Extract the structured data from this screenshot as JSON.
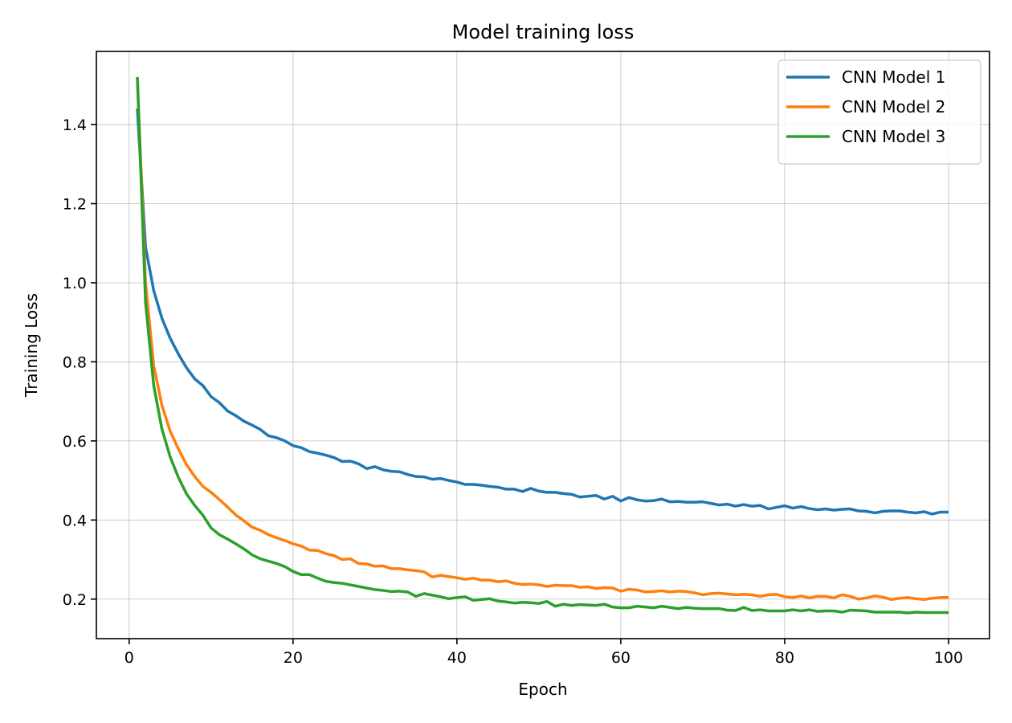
{
  "chart_data": {
    "type": "line",
    "title": "Model training loss",
    "xlabel": "Epoch",
    "ylabel": "Training Loss",
    "xlim": [
      -4,
      105
    ],
    "ylim": [
      0.1,
      1.585
    ],
    "xticks": [
      0,
      20,
      40,
      60,
      80,
      100
    ],
    "yticks": [
      0.2,
      0.4,
      0.6,
      0.8,
      1.0,
      1.2,
      1.4
    ],
    "xtick_labels": [
      "0",
      "20",
      "40",
      "60",
      "80",
      "100"
    ],
    "ytick_labels": [
      "0.2",
      "0.4",
      "0.6",
      "0.8",
      "1.0",
      "1.2",
      "1.4"
    ],
    "grid": true,
    "legend_position": "top-right",
    "series": [
      {
        "name": "CNN Model 1",
        "color": "#1f77b4",
        "x": [
          1,
          2,
          3,
          4,
          5,
          6,
          7,
          8,
          9,
          10,
          11,
          12,
          13,
          14,
          15,
          16,
          17,
          18,
          19,
          20,
          21,
          22,
          23,
          24,
          25,
          26,
          27,
          28,
          29,
          30,
          31,
          32,
          33,
          34,
          35,
          36,
          37,
          38,
          39,
          40,
          41,
          42,
          43,
          44,
          45,
          46,
          47,
          48,
          49,
          50,
          51,
          52,
          53,
          54,
          55,
          56,
          57,
          58,
          59,
          60,
          61,
          62,
          63,
          64,
          65,
          66,
          67,
          68,
          69,
          70,
          71,
          72,
          73,
          74,
          75,
          76,
          77,
          78,
          79,
          80,
          81,
          82,
          83,
          84,
          85,
          86,
          87,
          88,
          89,
          90,
          91,
          92,
          93,
          94,
          95,
          96,
          97,
          98,
          99,
          100
        ],
        "values": [
          1.44,
          1.09,
          0.98,
          0.91,
          0.86,
          0.82,
          0.785,
          0.757,
          0.74,
          0.712,
          0.697,
          0.676,
          0.664,
          0.65,
          0.64,
          0.629,
          0.613,
          0.608,
          0.6,
          0.588,
          0.583,
          0.573,
          0.569,
          0.564,
          0.558,
          0.548,
          0.549,
          0.542,
          0.53,
          0.535,
          0.527,
          0.523,
          0.522,
          0.515,
          0.51,
          0.509,
          0.503,
          0.505,
          0.5,
          0.496,
          0.49,
          0.49,
          0.488,
          0.485,
          0.483,
          0.478,
          0.478,
          0.472,
          0.48,
          0.473,
          0.47,
          0.47,
          0.467,
          0.465,
          0.458,
          0.46,
          0.462,
          0.453,
          0.46,
          0.448,
          0.457,
          0.451,
          0.448,
          0.449,
          0.453,
          0.446,
          0.447,
          0.445,
          0.445,
          0.446,
          0.442,
          0.438,
          0.44,
          0.435,
          0.439,
          0.435,
          0.437,
          0.428,
          0.432,
          0.436,
          0.43,
          0.434,
          0.429,
          0.426,
          0.428,
          0.425,
          0.427,
          0.428,
          0.423,
          0.422,
          0.418,
          0.422,
          0.423,
          0.423,
          0.42,
          0.418,
          0.421,
          0.415,
          0.42,
          0.42
        ]
      },
      {
        "name": "CNN Model 2",
        "color": "#ff7f0e",
        "x": [
          1,
          2,
          3,
          4,
          5,
          6,
          7,
          8,
          9,
          10,
          11,
          12,
          13,
          14,
          15,
          16,
          17,
          18,
          19,
          20,
          21,
          22,
          23,
          24,
          25,
          26,
          27,
          28,
          29,
          30,
          31,
          32,
          33,
          34,
          35,
          36,
          37,
          38,
          39,
          40,
          41,
          42,
          43,
          44,
          45,
          46,
          47,
          48,
          49,
          50,
          51,
          52,
          53,
          54,
          55,
          56,
          57,
          58,
          59,
          60,
          61,
          62,
          63,
          64,
          65,
          66,
          67,
          68,
          69,
          70,
          71,
          72,
          73,
          74,
          75,
          76,
          77,
          78,
          79,
          80,
          81,
          82,
          83,
          84,
          85,
          86,
          87,
          88,
          89,
          90,
          91,
          92,
          93,
          94,
          95,
          96,
          97,
          98,
          99,
          100
        ],
        "values": [
          1.52,
          1.0,
          0.79,
          0.69,
          0.625,
          0.58,
          0.54,
          0.51,
          0.485,
          0.47,
          0.452,
          0.433,
          0.413,
          0.398,
          0.382,
          0.374,
          0.363,
          0.355,
          0.348,
          0.34,
          0.334,
          0.324,
          0.323,
          0.315,
          0.31,
          0.3,
          0.302,
          0.29,
          0.289,
          0.283,
          0.284,
          0.277,
          0.277,
          0.274,
          0.272,
          0.269,
          0.256,
          0.26,
          0.257,
          0.254,
          0.25,
          0.253,
          0.248,
          0.248,
          0.244,
          0.246,
          0.24,
          0.237,
          0.238,
          0.236,
          0.232,
          0.235,
          0.234,
          0.234,
          0.23,
          0.231,
          0.227,
          0.229,
          0.228,
          0.22,
          0.225,
          0.223,
          0.218,
          0.219,
          0.221,
          0.218,
          0.22,
          0.219,
          0.216,
          0.211,
          0.214,
          0.215,
          0.213,
          0.211,
          0.212,
          0.211,
          0.207,
          0.211,
          0.212,
          0.206,
          0.204,
          0.208,
          0.203,
          0.207,
          0.207,
          0.203,
          0.211,
          0.207,
          0.2,
          0.203,
          0.208,
          0.205,
          0.199,
          0.202,
          0.204,
          0.201,
          0.199,
          0.202,
          0.204,
          0.204
        ]
      },
      {
        "name": "CNN Model 3",
        "color": "#2ca02c",
        "x": [
          1,
          2,
          3,
          4,
          5,
          6,
          7,
          8,
          9,
          10,
          11,
          12,
          13,
          14,
          15,
          16,
          17,
          18,
          19,
          20,
          21,
          22,
          23,
          24,
          25,
          26,
          27,
          28,
          29,
          30,
          31,
          32,
          33,
          34,
          35,
          36,
          37,
          38,
          39,
          40,
          41,
          42,
          43,
          44,
          45,
          46,
          47,
          48,
          49,
          50,
          51,
          52,
          53,
          54,
          55,
          56,
          57,
          58,
          59,
          60,
          61,
          62,
          63,
          64,
          65,
          66,
          67,
          68,
          69,
          70,
          71,
          72,
          73,
          74,
          75,
          76,
          77,
          78,
          79,
          80,
          81,
          82,
          83,
          84,
          85,
          86,
          87,
          88,
          89,
          90,
          91,
          92,
          93,
          94,
          95,
          96,
          97,
          98,
          99,
          100
        ],
        "values": [
          1.52,
          0.95,
          0.74,
          0.63,
          0.56,
          0.508,
          0.466,
          0.437,
          0.412,
          0.38,
          0.363,
          0.352,
          0.34,
          0.327,
          0.312,
          0.302,
          0.296,
          0.29,
          0.282,
          0.27,
          0.262,
          0.262,
          0.253,
          0.245,
          0.242,
          0.24,
          0.236,
          0.232,
          0.228,
          0.224,
          0.222,
          0.219,
          0.22,
          0.218,
          0.207,
          0.214,
          0.21,
          0.206,
          0.201,
          0.204,
          0.206,
          0.197,
          0.199,
          0.201,
          0.195,
          0.193,
          0.19,
          0.192,
          0.191,
          0.189,
          0.194,
          0.182,
          0.187,
          0.184,
          0.186,
          0.185,
          0.184,
          0.187,
          0.18,
          0.178,
          0.178,
          0.182,
          0.18,
          0.178,
          0.182,
          0.179,
          0.176,
          0.179,
          0.177,
          0.176,
          0.176,
          0.176,
          0.172,
          0.171,
          0.179,
          0.171,
          0.173,
          0.17,
          0.17,
          0.17,
          0.173,
          0.17,
          0.173,
          0.169,
          0.17,
          0.17,
          0.167,
          0.172,
          0.171,
          0.17,
          0.167,
          0.167,
          0.167,
          0.167,
          0.165,
          0.167,
          0.166,
          0.166,
          0.166,
          0.166
        ]
      }
    ]
  }
}
